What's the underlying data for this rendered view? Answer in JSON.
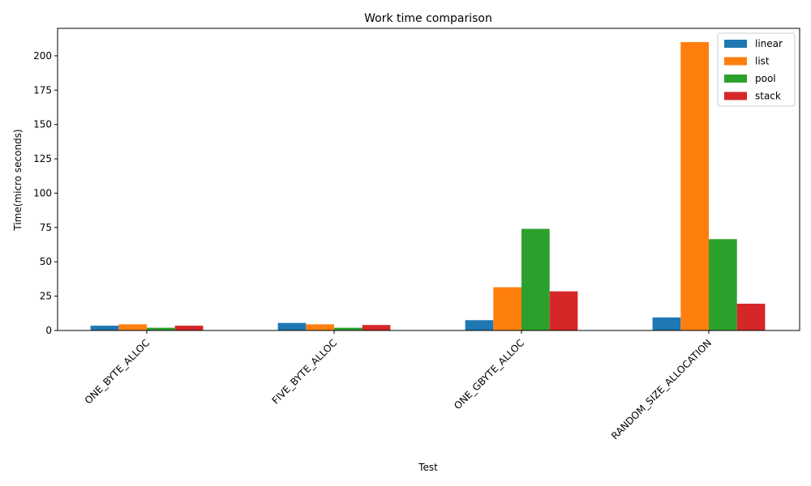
{
  "chart_data": {
    "type": "bar",
    "title": "Work time comparison",
    "xlabel": "Test",
    "ylabel": "Time(micro seconds)",
    "categories": [
      "ONE_BYTE_ALLOC",
      "FIVE_BYTE_ALLOC",
      "ONE_GBYTE_ALLOC",
      "RANDOM_SIZE_ALLOCATION"
    ],
    "series": [
      {
        "name": "linear",
        "color": "#1f77b4",
        "values": [
          3.5,
          5.5,
          7.5,
          9.5
        ]
      },
      {
        "name": "list",
        "color": "#ff7f0e",
        "values": [
          4.5,
          4.5,
          31.5,
          210
        ]
      },
      {
        "name": "pool",
        "color": "#2ca02c",
        "values": [
          2.0,
          2.0,
          74,
          66.5
        ]
      },
      {
        "name": "stack",
        "color": "#d62728",
        "values": [
          3.5,
          4.0,
          28.5,
          19.5
        ]
      }
    ],
    "ylim": [
      0,
      220
    ],
    "yticks": [
      0,
      25,
      50,
      75,
      100,
      125,
      150,
      175,
      200
    ],
    "xtick_rotation": 45,
    "grid": false,
    "legend": "top-right"
  }
}
